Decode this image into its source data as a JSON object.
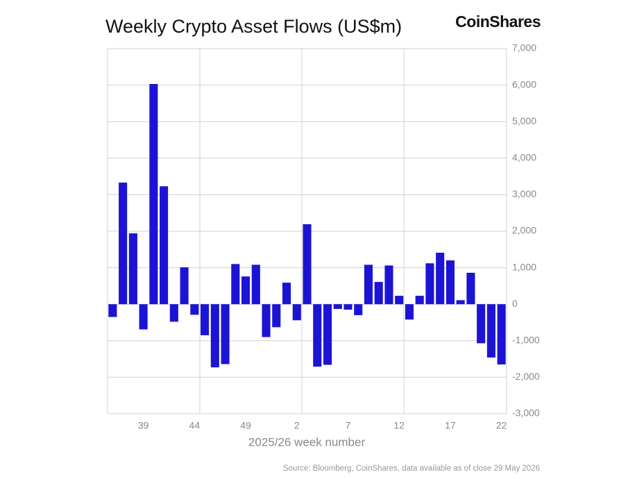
{
  "chart_data": {
    "type": "bar",
    "title": "Weekly Crypto Asset Flows (US$m)",
    "brand": "CoinShares",
    "x_label": "2025/26 week number",
    "source": "Source: Bloomberg, CoinShares, data available as of close 29 May 2026",
    "categories": [
      null,
      null,
      null,
      "39",
      null,
      null,
      null,
      null,
      "44",
      null,
      null,
      null,
      null,
      "49",
      null,
      null,
      null,
      null,
      "2",
      null,
      null,
      null,
      null,
      "7",
      null,
      null,
      null,
      null,
      "12",
      null,
      null,
      null,
      null,
      "17",
      null,
      null,
      null,
      null,
      "22"
    ],
    "values": [
      -350,
      3330,
      1940,
      -690,
      6030,
      3230,
      -480,
      1010,
      -290,
      -850,
      -1730,
      -1640,
      1100,
      760,
      1080,
      -900,
      -630,
      590,
      -440,
      2190,
      -1710,
      -1660,
      -130,
      -150,
      -300,
      1080,
      610,
      1060,
      230,
      -420,
      230,
      1120,
      1410,
      1200,
      110,
      860,
      -1070,
      -1460,
      -1650
    ],
    "color": "#1c14d4",
    "ylim": [
      -3000,
      7000
    ],
    "yticks": [
      {
        "value": -3000,
        "label": "-3,000"
      },
      {
        "value": -2000,
        "label": "-2,000"
      },
      {
        "value": -1000,
        "label": "-1,000"
      },
      0,
      {
        "value": 1000,
        "label": "1,000"
      },
      {
        "value": 2000,
        "label": "2,000"
      },
      {
        "value": 3000,
        "label": "3,000"
      },
      {
        "value": 4000,
        "label": "4,000"
      },
      {
        "value": 5000,
        "label": "5,000"
      },
      {
        "value": 6000,
        "label": "6,000"
      },
      {
        "value": 7000,
        "label": "7,000"
      }
    ],
    "grid": true
  }
}
